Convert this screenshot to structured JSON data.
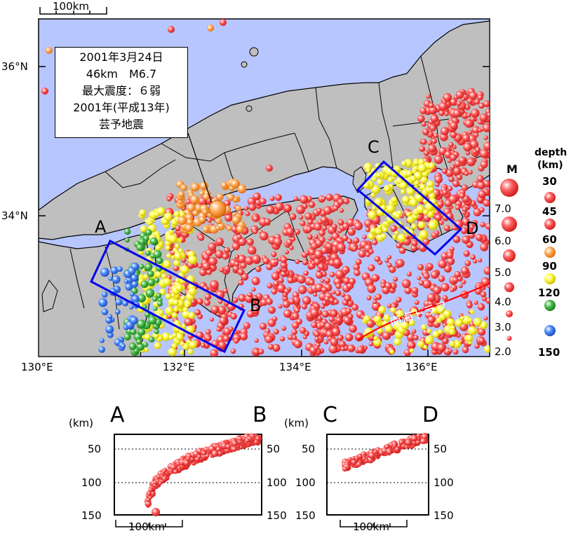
{
  "map": {
    "scale_label": "100km",
    "lat_labels": [
      "36°N",
      "34°N"
    ],
    "lon_labels": [
      "130°E",
      "132°E",
      "134°E",
      "136°E"
    ],
    "box_labels": [
      "A",
      "B",
      "C",
      "D"
    ],
    "trough_label": "南海トラフ",
    "annotation": [
      "2001年3月24日",
      "46km　M6.7",
      "最大震度：６弱",
      "2001年(平成13年)",
      "芸予地震"
    ],
    "colors": {
      "sea": "#b8c6ff",
      "land": "#bfbfbf",
      "box": "#0000ee",
      "trough": "#ff0000"
    }
  },
  "legend": {
    "magnitude_title": "M",
    "magnitudes": [
      "7.0",
      "6.0",
      "5.0",
      "4.0",
      "3.0",
      "2.0"
    ],
    "depth_title": [
      "depth",
      "(km)"
    ],
    "depths": [
      {
        "value": "30",
        "color": "#ff4444"
      },
      {
        "value": "45",
        "color": "#ff4444"
      },
      {
        "value": "60",
        "color": "#ffa040"
      },
      {
        "value": "90",
        "color": "#ffff30"
      },
      {
        "value": "120",
        "color": "#40b040"
      },
      {
        "value": "150",
        "color": "#4080ff"
      }
    ]
  },
  "sections": {
    "unit": "(km)",
    "left_labels": [
      "A",
      "B"
    ],
    "right_labels": [
      "C",
      "D"
    ],
    "depth_ticks": [
      "50",
      "100",
      "150"
    ],
    "scale_label": "100km"
  }
}
